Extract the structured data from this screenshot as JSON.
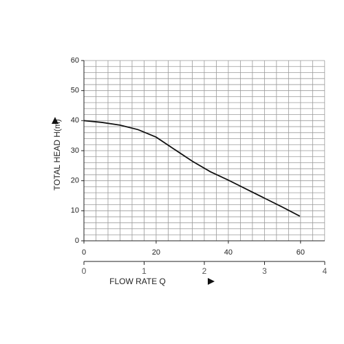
{
  "chart_data": {
    "type": "line",
    "x_label": "FLOW RATE Q",
    "y_label": "TOTAL HEAD H(m)",
    "x": [
      0,
      5,
      10,
      15,
      20,
      25,
      30,
      35,
      40,
      45,
      50,
      55,
      59.8
    ],
    "series": [
      {
        "name": null,
        "color": "#111111",
        "values": [
          40,
          39.4,
          38.5,
          37,
          34.5,
          30.5,
          26.5,
          23,
          20.2,
          17.2,
          14.2,
          11.2,
          8.2
        ]
      }
    ],
    "xlim": [
      0,
      66.7
    ],
    "xticks": [
      0,
      20,
      40,
      60
    ],
    "ylim": [
      0,
      60
    ],
    "yticks": [
      0,
      10,
      20,
      30,
      40,
      50,
      60
    ],
    "x2lim": [
      0,
      4
    ],
    "x2ticks": [
      0,
      1,
      2,
      3,
      4
    ],
    "grid": true
  }
}
